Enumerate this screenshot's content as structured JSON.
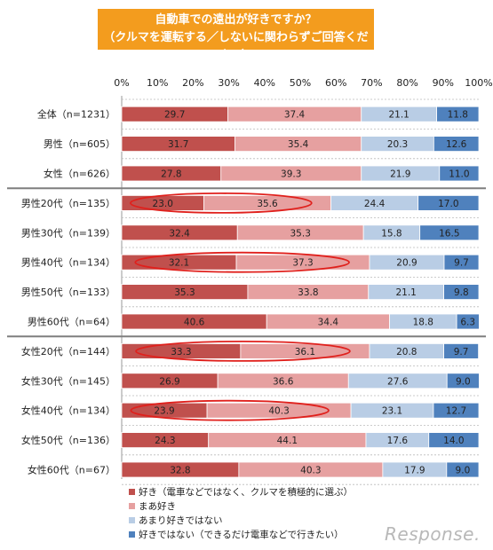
{
  "title": {
    "line1": "自動車での遠出が好きですか？",
    "line2": "（クルマを運転する／しないに関わらずご回答ください）"
  },
  "chart_data": {
    "type": "bar",
    "stacked": true,
    "orientation": "horizontal",
    "xlim": [
      0,
      100
    ],
    "xticks": [
      "0%",
      "10%",
      "20%",
      "30%",
      "40%",
      "50%",
      "60%",
      "70%",
      "80%",
      "90%",
      "100%"
    ],
    "categories": [
      "全体（n=1231）",
      "男性（n=605）",
      "女性（n=626）",
      "男性20代（n=135）",
      "男性30代（n=139）",
      "男性40代（n=134）",
      "男性50代（n=133）",
      "男性60代（n=64）",
      "女性20代（n=144）",
      "女性30代（n=145）",
      "女性40代（n=134）",
      "女性50代（n=136）",
      "女性60代（n=67）"
    ],
    "series": [
      {
        "name": "好き（電車などではなく、クルマを積極的に選ぶ）",
        "color": "#c0504d",
        "values": [
          29.7,
          31.7,
          27.8,
          23.0,
          32.4,
          32.1,
          35.3,
          40.6,
          33.3,
          26.9,
          23.9,
          24.3,
          32.8
        ]
      },
      {
        "name": "まあ好き",
        "color": "#e6a0a0",
        "values": [
          37.4,
          35.4,
          39.3,
          35.6,
          35.3,
          37.3,
          33.8,
          34.4,
          36.1,
          36.6,
          40.3,
          44.1,
          40.3
        ]
      },
      {
        "name": "あまり好きではない",
        "color": "#b9cde5",
        "values": [
          21.1,
          20.3,
          21.9,
          24.4,
          15.8,
          20.9,
          21.1,
          18.8,
          20.8,
          27.6,
          23.1,
          17.6,
          17.9
        ]
      },
      {
        "name": "好きではない（できるだけ電車などで行きたい）",
        "color": "#4f81bd",
        "values": [
          11.8,
          12.6,
          11.0,
          17.0,
          16.5,
          9.7,
          9.8,
          6.3,
          9.7,
          9.0,
          12.7,
          14.0,
          9.0
        ]
      }
    ],
    "group_separators_after": [
      2,
      7
    ],
    "highlighted_rows": [
      3,
      5,
      8,
      10
    ],
    "grid": false
  },
  "logo": {
    "text": "Response."
  }
}
